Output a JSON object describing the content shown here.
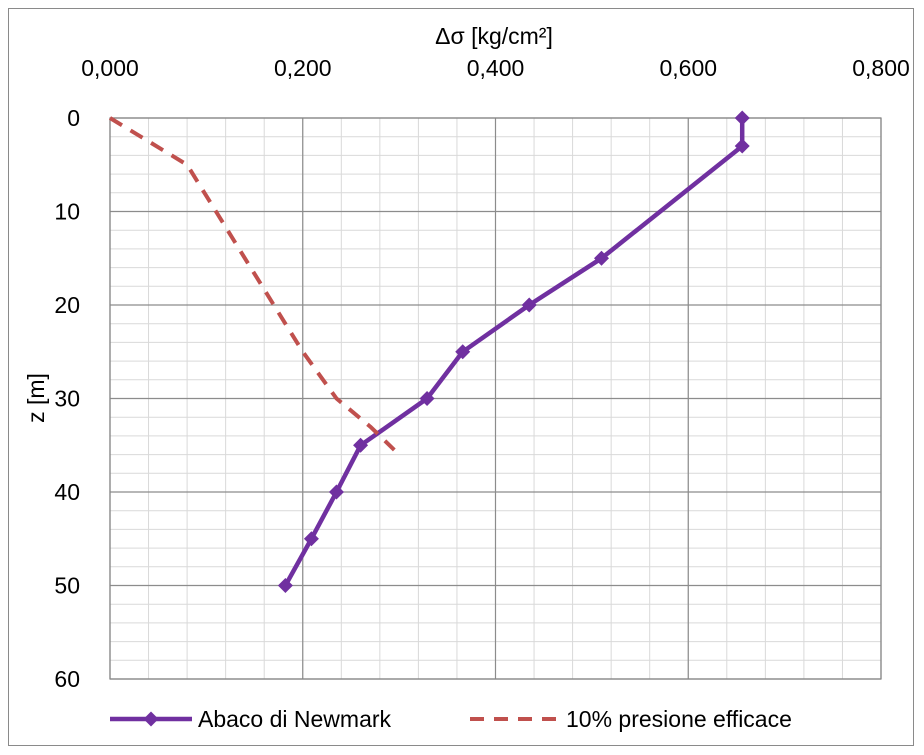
{
  "chart_data": {
    "type": "line",
    "xlabel": "Δσ [kg/cm²]",
    "ylabel": "z [m]",
    "x_axis_position": "top",
    "y_axis_inverted": true,
    "xlim": [
      0,
      0.8
    ],
    "ylim": [
      0,
      60
    ],
    "xticks": [
      "0,000",
      "0,200",
      "0,400",
      "0,600",
      "0,800"
    ],
    "xtick_values": [
      0,
      0.2,
      0.4,
      0.6,
      0.8
    ],
    "yticks": [
      "0",
      "10",
      "20",
      "30",
      "40",
      "50",
      "60"
    ],
    "ytick_values": [
      0,
      10,
      20,
      30,
      40,
      50,
      60
    ],
    "grid": true,
    "legend_position": "bottom",
    "series": [
      {
        "name": "Abaco di Newmark",
        "style": "solid-with-diamond-markers",
        "color": "#7030a0",
        "points": [
          {
            "x": 0.656,
            "y": 0
          },
          {
            "x": 0.656,
            "y": 3
          },
          {
            "x": 0.51,
            "y": 15
          },
          {
            "x": 0.435,
            "y": 20
          },
          {
            "x": 0.366,
            "y": 25
          },
          {
            "x": 0.329,
            "y": 30
          },
          {
            "x": 0.26,
            "y": 35
          },
          {
            "x": 0.235,
            "y": 40
          },
          {
            "x": 0.209,
            "y": 45
          },
          {
            "x": 0.182,
            "y": 50
          }
        ]
      },
      {
        "name": "10% presione efficace",
        "style": "dashed",
        "color": "#c0504d",
        "points": [
          {
            "x": 0.0,
            "y": 0
          },
          {
            "x": 0.04,
            "y": 2.5
          },
          {
            "x": 0.08,
            "y": 5
          },
          {
            "x": 0.11,
            "y": 10
          },
          {
            "x": 0.14,
            "y": 15
          },
          {
            "x": 0.17,
            "y": 20
          },
          {
            "x": 0.2,
            "y": 25
          },
          {
            "x": 0.235,
            "y": 30
          },
          {
            "x": 0.27,
            "y": 33
          },
          {
            "x": 0.295,
            "y": 35.5
          }
        ]
      }
    ]
  }
}
